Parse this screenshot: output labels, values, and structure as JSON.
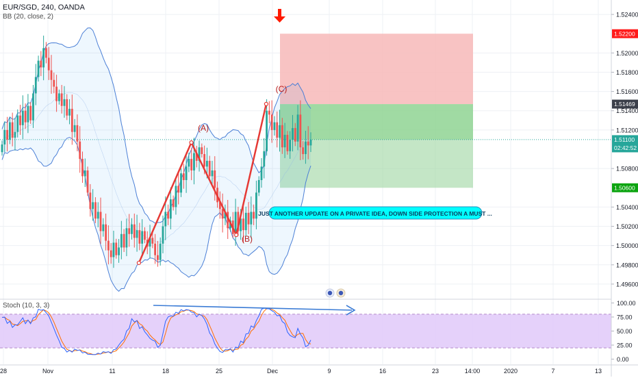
{
  "header": {
    "symbol_line": "EUR/SGD, 240, OANDA",
    "indicator_line": "BB (20, close, 2)",
    "stoch_label": "Stoch (10, 3, 3)"
  },
  "colors": {
    "up": "#26a69a",
    "down": "#ef5350",
    "bb": "#4a7fd6",
    "bb_fill": "rgba(33,150,243,0.08)",
    "stop_zone": "#f7b9b9",
    "target_zone": "#a5d9a8",
    "wave": "#e53935",
    "stoch_k": "#2962ff",
    "stoch_d": "#ff6d00",
    "stoch_band": "#e1c9f9"
  },
  "price_axis": {
    "ticks": [
      "1.52400",
      "1.52000",
      "1.51800",
      "1.51600",
      "1.51400",
      "1.51200",
      "1.50800",
      "1.50400",
      "1.50200",
      "1.50000",
      "1.49800",
      "1.49600"
    ],
    "badges": [
      {
        "label": "1.52200",
        "kind": "stop"
      },
      {
        "label": "1.51469",
        "kind": "entry"
      },
      {
        "label": "1.51100",
        "kind": "last"
      },
      {
        "label": "02:42:52",
        "kind": "countdown"
      },
      {
        "label": "1.50600",
        "kind": "target"
      }
    ]
  },
  "stoch_axis": {
    "ticks": [
      "100.00",
      "75.00",
      "50.00",
      "25.00",
      "0.00"
    ]
  },
  "time_axis": {
    "labels": [
      "28",
      "Nov",
      "11",
      "18",
      "25",
      "Dec",
      "9",
      "16",
      "23",
      "14:00",
      "2020",
      "7",
      "13"
    ]
  },
  "waves": {
    "labels": [
      "(A)",
      "(B)",
      "(C)"
    ]
  },
  "annotation": {
    "text": "JUST ANOTHER UPDATE ON A PRIVATE IDEA, DOWN SIDE PROTECTION A MUST ..."
  },
  "chart_data": {
    "type": "candlestick",
    "symbol": "EUR/SGD",
    "interval": "240",
    "source": "OANDA",
    "price_range": [
      1.4945,
      1.5255
    ],
    "trade_setup": {
      "direction": "short",
      "entry": 1.51469,
      "stop": 1.522,
      "target": 1.506,
      "last": 1.511
    },
    "wave_points": [
      {
        "label": "start",
        "date": "2019-11-15",
        "price": 1.4982
      },
      {
        "label": "(A)",
        "date": "2019-11-22",
        "price": 1.5107
      },
      {
        "label": "(B)",
        "date": "2019-11-28",
        "price": 1.5011
      },
      {
        "label": "(C)",
        "date": "2019-12-02",
        "price": 1.5147
      }
    ],
    "bollinger": {
      "period": 20,
      "source": "close",
      "stdev": 2
    },
    "stochastic": {
      "k": 10,
      "d": 3,
      "smooth": 3,
      "levels": [
        20,
        80
      ],
      "range": [
        0,
        100
      ]
    },
    "closes": [
      1.5105,
      1.512,
      1.511,
      1.5128,
      1.5112,
      1.5118,
      1.5135,
      1.5125,
      1.514,
      1.5128,
      1.5145,
      1.513,
      1.5158,
      1.5175,
      1.5192,
      1.5185,
      1.5205,
      1.5195,
      1.5182,
      1.5172,
      1.5165,
      1.515,
      1.5158,
      1.5145,
      1.5152,
      1.5135,
      1.5142,
      1.5118,
      1.5125,
      1.5108,
      1.509,
      1.5072,
      1.5078,
      1.5055,
      1.5038,
      1.5045,
      1.5028,
      1.5035,
      1.5015,
      1.5022,
      1.5005,
      1.4995,
      1.4988,
      1.5003,
      1.499,
      1.4998,
      1.5012,
      1.4998,
      1.5018,
      1.5012,
      1.5022,
      1.5008,
      1.5016,
      1.5002,
      1.5015,
      1.5006,
      1.4999,
      1.5008,
      1.5002,
      1.499,
      1.4985,
      1.5002,
      1.502,
      1.5035,
      1.5028,
      1.5048,
      1.504,
      1.5062,
      1.5055,
      1.5075,
      1.5068,
      1.5082,
      1.509,
      1.5078,
      1.5096,
      1.5088,
      1.5102,
      1.5095,
      1.5082,
      1.5088,
      1.5072,
      1.5078,
      1.506,
      1.5045,
      1.5038,
      1.5028,
      1.5035,
      1.5018,
      1.5026,
      1.5012,
      1.5035,
      1.5015,
      1.5028,
      1.5016,
      1.5034,
      1.5022,
      1.5035,
      1.5028,
      1.5055,
      1.5068,
      1.5082,
      1.5098,
      1.514,
      1.5136,
      1.512,
      1.5128,
      1.5112,
      1.5125,
      1.5102,
      1.5115,
      1.5098,
      1.511,
      1.5122,
      1.5108,
      1.5136,
      1.5102,
      1.5095,
      1.5108,
      1.5104,
      1.511
    ]
  }
}
